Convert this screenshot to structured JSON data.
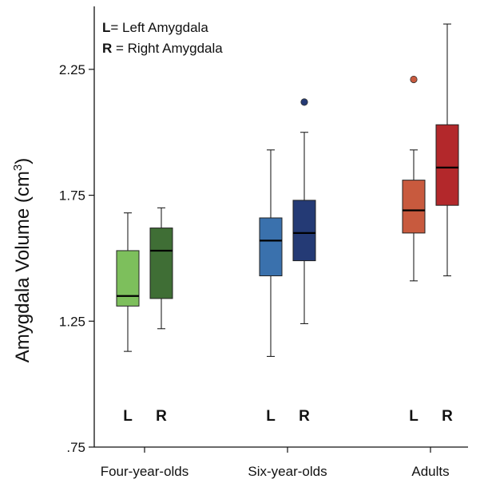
{
  "chart_data": {
    "type": "boxplot",
    "ylabel": "Amygdala Volume (cm",
    "ylabel_superscript": "3",
    "ylabel_close": ")",
    "ylim": [
      0.75,
      2.5
    ],
    "yticks": [
      {
        "value": 0.75,
        "label": ".75"
      },
      {
        "value": 1.25,
        "label": "1.25"
      },
      {
        "value": 1.75,
        "label": "1.75"
      },
      {
        "value": 2.25,
        "label": "2.25"
      }
    ],
    "legend": [
      {
        "key": "L",
        "text": "= Left Amygdala"
      },
      {
        "key": "R",
        "text": " = Right Amygdala"
      }
    ],
    "legend_position": "top-left",
    "groups": [
      {
        "label": "Four-year-olds",
        "boxes": [
          {
            "side": "L",
            "color": "#7dbf5c",
            "whisker_low": 1.13,
            "q1": 1.31,
            "median": 1.35,
            "q3": 1.53,
            "whisker_high": 1.68,
            "outliers": []
          },
          {
            "side": "R",
            "color": "#3f6e35",
            "whisker_low": 1.22,
            "q1": 1.34,
            "median": 1.53,
            "q3": 1.62,
            "whisker_high": 1.7,
            "outliers": []
          }
        ]
      },
      {
        "label": "Six-year-olds",
        "boxes": [
          {
            "side": "L",
            "color": "#3a71ad",
            "whisker_low": 1.11,
            "q1": 1.43,
            "median": 1.57,
            "q3": 1.66,
            "whisker_high": 1.93,
            "outliers": []
          },
          {
            "side": "R",
            "color": "#243a75",
            "whisker_low": 1.24,
            "q1": 1.49,
            "median": 1.6,
            "q3": 1.73,
            "whisker_high": 2.0,
            "outliers": [
              2.12
            ]
          }
        ]
      },
      {
        "label": "Adults",
        "boxes": [
          {
            "side": "L",
            "color": "#c85a3e",
            "whisker_low": 1.41,
            "q1": 1.6,
            "median": 1.69,
            "q3": 1.81,
            "whisker_high": 1.93,
            "outliers": [
              2.21
            ]
          },
          {
            "side": "R",
            "color": "#b3282b",
            "whisker_low": 1.43,
            "q1": 1.71,
            "median": 1.86,
            "q3": 2.03,
            "whisker_high": 2.43,
            "outliers": []
          }
        ]
      }
    ],
    "grid": false
  }
}
